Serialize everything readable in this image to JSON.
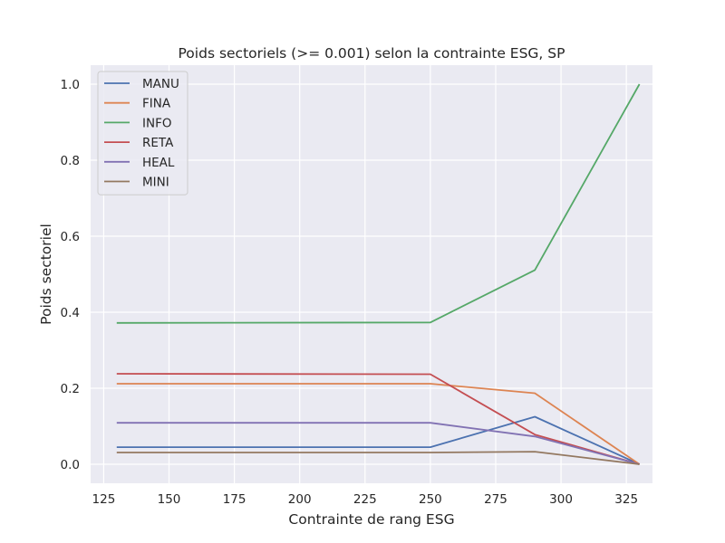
{
  "chart_data": {
    "type": "line",
    "title": "Poids sectoriels (>= 0.001) selon la contrainte ESG, SP",
    "xlabel": "Contrainte de rang ESG",
    "ylabel": "Poids sectoriel",
    "xlim": [
      120,
      335
    ],
    "ylim": [
      -0.05,
      1.05
    ],
    "xticks": [
      125,
      150,
      175,
      200,
      225,
      250,
      275,
      300,
      325
    ],
    "yticks": [
      0.0,
      0.2,
      0.4,
      0.6,
      0.8,
      1.0
    ],
    "xtick_labels": [
      "125",
      "150",
      "175",
      "200",
      "225",
      "250",
      "275",
      "300",
      "325"
    ],
    "ytick_labels": [
      "0.0",
      "0.2",
      "0.4",
      "0.6",
      "0.8",
      "1.0"
    ],
    "grid": true,
    "legend_position": "top-left",
    "x": [
      130,
      250,
      290,
      330
    ],
    "series": [
      {
        "name": "MANU",
        "color": "#4c72b0",
        "values": [
          0.045,
          0.045,
          0.125,
          0.0
        ]
      },
      {
        "name": "FINA",
        "color": "#dd8452",
        "values": [
          0.212,
          0.212,
          0.187,
          0.0
        ]
      },
      {
        "name": "INFO",
        "color": "#55a868",
        "values": [
          0.372,
          0.373,
          0.511,
          1.0
        ]
      },
      {
        "name": "RETA",
        "color": "#c44e52",
        "values": [
          0.238,
          0.237,
          0.078,
          0.0
        ]
      },
      {
        "name": "HEAL",
        "color": "#8172b3",
        "values": [
          0.109,
          0.109,
          0.073,
          0.0
        ]
      },
      {
        "name": "MINI",
        "color": "#937860",
        "values": [
          0.031,
          0.031,
          0.033,
          0.0
        ]
      }
    ]
  }
}
